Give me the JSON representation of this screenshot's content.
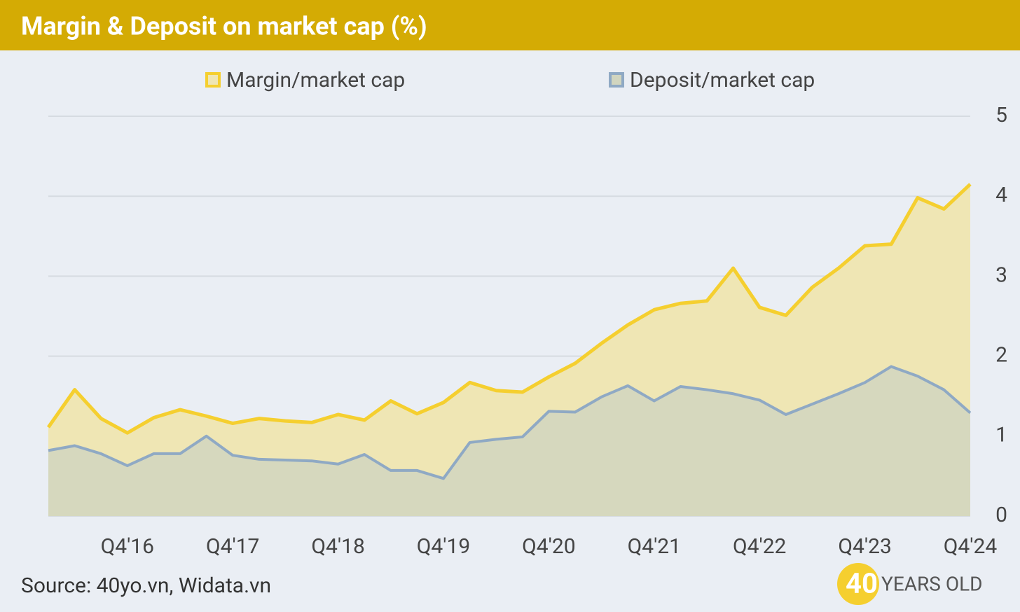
{
  "chart_data": {
    "type": "area",
    "title": "Margin & Deposit on market cap (%)",
    "source": "Source: 40yo.vn, Widata.vn",
    "logo": {
      "number": "40",
      "text": "YEARS OLD"
    },
    "categories": [
      null,
      null,
      null,
      "Q4'16",
      null,
      null,
      null,
      "Q4'17",
      null,
      null,
      null,
      "Q4'18",
      null,
      null,
      null,
      "Q4'19",
      null,
      null,
      null,
      "Q4'20",
      null,
      null,
      null,
      "Q4'21",
      null,
      null,
      null,
      "Q4'22",
      null,
      null,
      null,
      "Q4'23",
      null,
      null,
      null,
      "Q4'24"
    ],
    "series": [
      {
        "name": "Margin/market cap",
        "color": "#f5cf2f",
        "fill": "#efe6b4",
        "values": [
          1.11,
          1.58,
          1.22,
          1.04,
          1.23,
          1.33,
          1.25,
          1.16,
          1.22,
          1.19,
          1.17,
          1.27,
          1.2,
          1.44,
          1.28,
          1.42,
          1.67,
          1.57,
          1.55,
          1.74,
          1.91,
          2.16,
          2.39,
          2.58,
          2.66,
          2.69,
          3.1,
          2.61,
          2.51,
          2.86,
          3.1,
          3.38,
          3.4,
          3.98,
          3.84,
          4.15
        ]
      },
      {
        "name": "Deposit/market cap",
        "color": "#8fa9c4",
        "fill": "#d1d5bf",
        "values": [
          0.82,
          0.88,
          0.78,
          0.63,
          0.78,
          0.78,
          1.0,
          0.76,
          0.71,
          0.7,
          0.69,
          0.65,
          0.77,
          0.57,
          0.57,
          0.47,
          0.92,
          0.96,
          0.99,
          1.31,
          1.3,
          1.49,
          1.63,
          1.44,
          1.62,
          1.58,
          1.53,
          1.45,
          1.27,
          1.4,
          1.53,
          1.67,
          1.87,
          1.75,
          1.58,
          1.29
        ]
      }
    ],
    "ylim": [
      0,
      5
    ],
    "yticks": [
      0,
      1,
      2,
      3,
      4,
      5
    ],
    "grid": true,
    "legend": "top"
  }
}
